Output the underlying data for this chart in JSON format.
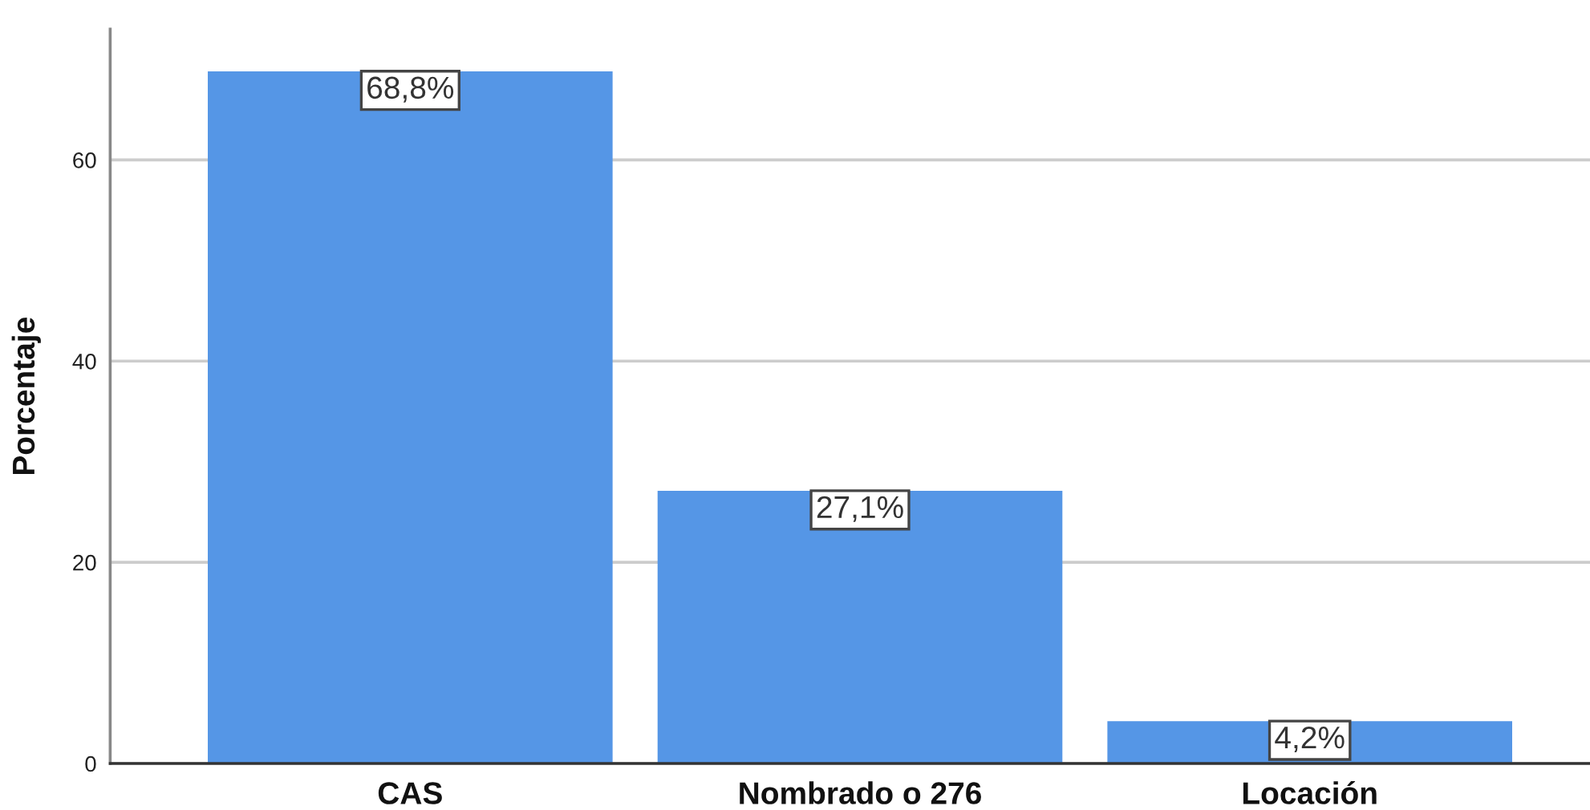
{
  "chart_data": {
    "type": "bar",
    "ylabel": "Porcentaje",
    "categories": [
      "CAS",
      "Nombrado o 276",
      "Locación"
    ],
    "values": [
      68.8,
      27.1,
      4.2
    ],
    "value_labels": [
      "68,8%",
      "27,1%",
      "4,2%"
    ],
    "color": "#5596e6",
    "ylim": [
      0,
      73
    ],
    "yticks": [
      0,
      20,
      40,
      60
    ],
    "grid": "y"
  }
}
